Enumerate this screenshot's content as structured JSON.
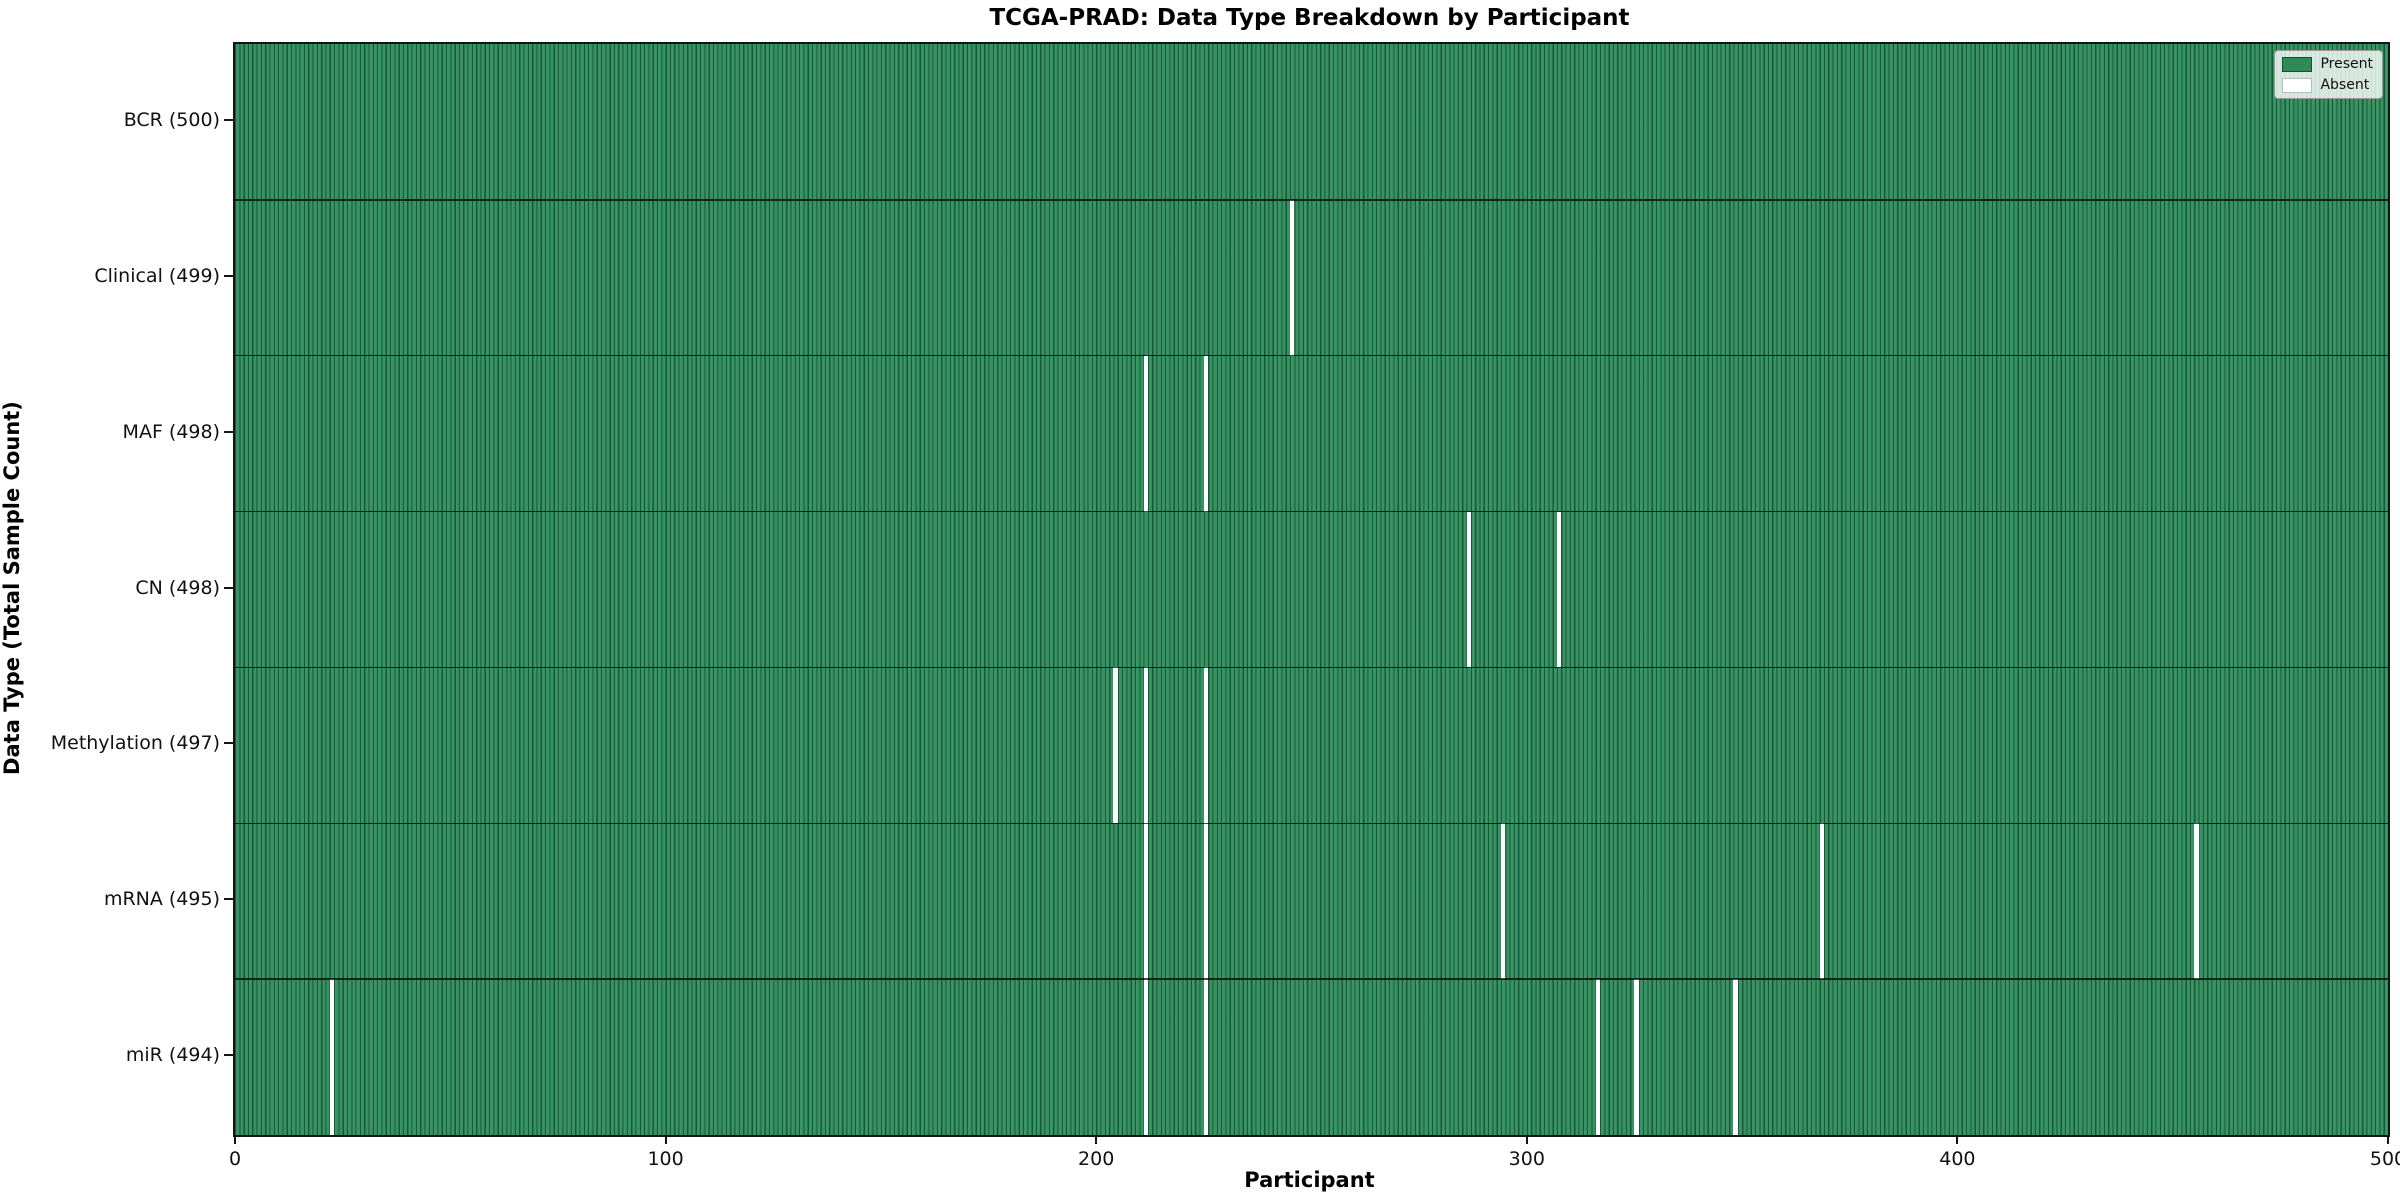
{
  "title": "TCGA-PRAD: Data Type Breakdown by Participant",
  "legend": {
    "present_label": "Present",
    "absent_label": "Absent"
  },
  "chart_data": {
    "type": "heatmap",
    "title": "TCGA-PRAD: Data Type Breakdown by Participant",
    "xlabel": "Participant",
    "ylabel": "Data Type (Total Sample Count)",
    "xlim": [
      0,
      500
    ],
    "x_ticks": [
      0,
      100,
      200,
      300,
      400,
      500
    ],
    "n_participants": 500,
    "grid": false,
    "legend_position": "upper right",
    "legend_entries": [
      {
        "label": "Present",
        "color": "#2e8b57"
      },
      {
        "label": "Absent",
        "color": "#ffffff"
      }
    ],
    "colors": {
      "present": "#2e8b57",
      "bar_edge": "#16402a",
      "absent": "#ffffff"
    },
    "rows": [
      {
        "label": "BCR (500)",
        "data_type": "BCR",
        "total": 500,
        "absent_participants": []
      },
      {
        "label": "Clinical (499)",
        "data_type": "Clinical",
        "total": 499,
        "absent_participants": [
          245
        ]
      },
      {
        "label": "MAF (498)",
        "data_type": "MAF",
        "total": 498,
        "absent_participants": [
          211,
          225
        ]
      },
      {
        "label": "CN (498)",
        "data_type": "CN",
        "total": 498,
        "absent_participants": [
          286,
          307
        ]
      },
      {
        "label": "Methylation (497)",
        "data_type": "Methylation",
        "total": 497,
        "absent_participants": [
          204,
          211,
          225
        ]
      },
      {
        "label": "mRNA (495)",
        "data_type": "mRNA",
        "total": 495,
        "absent_participants": [
          211,
          225,
          294,
          368,
          455
        ]
      },
      {
        "label": "miR (494)",
        "data_type": "miR",
        "total": 494,
        "absent_participants": [
          22,
          211,
          225,
          316,
          325,
          348
        ]
      }
    ]
  }
}
